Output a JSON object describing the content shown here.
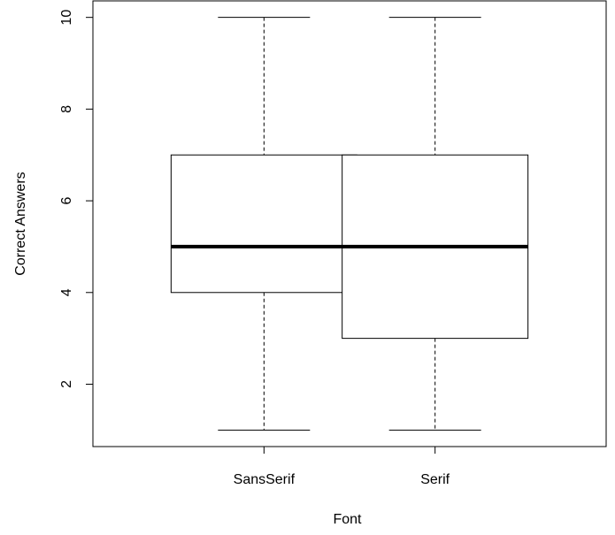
{
  "chart_data": {
    "type": "boxplot",
    "xlabel": "Font",
    "ylabel": "Correct Answers",
    "categories": [
      "SansSerif",
      "Serif"
    ],
    "boxes": [
      {
        "category": "SansSerif",
        "min": 1,
        "q1": 4,
        "median": 5,
        "q3": 7,
        "max": 10
      },
      {
        "category": "Serif",
        "min": 1,
        "q1": 3,
        "median": 5,
        "q3": 7,
        "max": 10
      }
    ],
    "ylim": [
      0.64,
      10.36
    ],
    "yticks": [
      2,
      4,
      6,
      8,
      10
    ],
    "grid": false
  }
}
